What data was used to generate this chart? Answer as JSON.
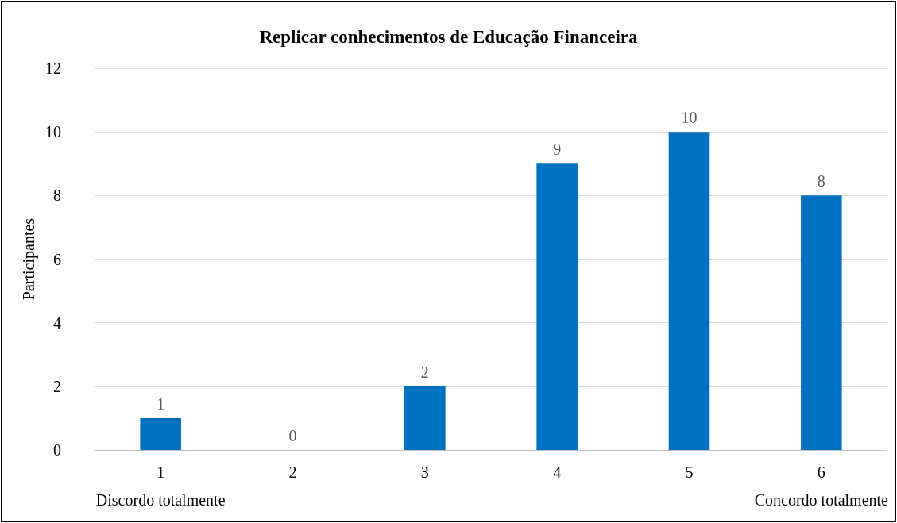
{
  "chart_data": {
    "type": "bar",
    "title": "Replicar conhecimentos de Educação Financeira",
    "ylabel": "Participantes",
    "categories": [
      "1",
      "2",
      "3",
      "4",
      "5",
      "6"
    ],
    "values": [
      1,
      0,
      2,
      9,
      10,
      8
    ],
    "color": "#0070c0",
    "ylim": [
      0,
      12
    ],
    "yticks": [
      0,
      2,
      4,
      6,
      8,
      10,
      12
    ],
    "grid": "y",
    "data_labels": true,
    "annotations": [
      "Discordo totalmente",
      "Concordo totalmente"
    ]
  }
}
